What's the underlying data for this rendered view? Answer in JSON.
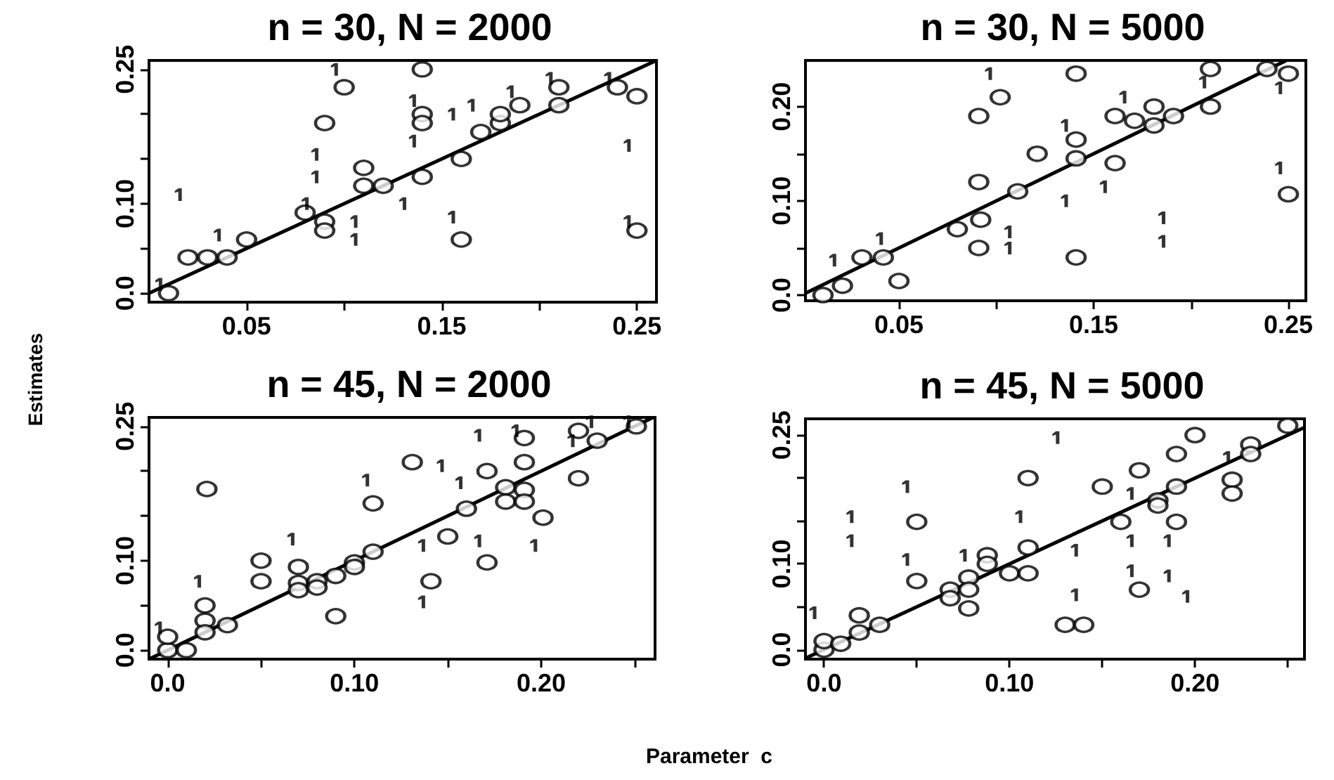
{
  "chart_data": [
    {
      "type": "scatter",
      "title": "n = 30, N = 2000",
      "ylabel": "Estimates",
      "xlim": [
        0,
        0.26
      ],
      "ylim": [
        -0.01,
        0.26
      ],
      "xticks": [
        0.05,
        {
          "value": 0.1,
          "label": null
        },
        0.15,
        {
          "value": 0.2,
          "label": null
        },
        0.25
      ],
      "yticks": [
        {
          "value": 0,
          "label": "0.0"
        },
        {
          "value": 0.05,
          "label": null
        },
        {
          "value": 0.1,
          "label": "0.10"
        },
        {
          "value": 0.15,
          "label": null
        },
        {
          "value": 0.2,
          "label": null
        },
        {
          "value": 0.25,
          "label": "0.25"
        }
      ],
      "series": [
        {
          "type": "scatter",
          "marker": "circle",
          "color": "#000000",
          "x": [
            0.01,
            0.02,
            0.03,
            0.04,
            0.05,
            0.08,
            0.09,
            0.09,
            0.09,
            0.1,
            0.11,
            0.11,
            0.12,
            0.14,
            0.14,
            0.14,
            0.14,
            0.16,
            0.16,
            0.17,
            0.18,
            0.18,
            0.19,
            0.21,
            0.21,
            0.24,
            0.25,
            0.25
          ],
          "values": [
            0.0,
            0.04,
            0.04,
            0.04,
            0.06,
            0.09,
            0.08,
            0.07,
            0.19,
            0.23,
            0.14,
            0.12,
            0.12,
            0.25,
            0.2,
            0.19,
            0.13,
            0.15,
            0.06,
            0.18,
            0.19,
            0.2,
            0.21,
            0.23,
            0.21,
            0.23,
            0.22,
            0.07
          ]
        },
        {
          "type": "scatter",
          "color": "#000000",
          "x": [
            0.015,
            0.005,
            0.035,
            0.085,
            0.085,
            0.08,
            0.095,
            0.105,
            0.105,
            0.13,
            0.135,
            0.135,
            0.155,
            0.155,
            0.165,
            0.185,
            0.205,
            0.235,
            0.245,
            0.245
          ],
          "values": [
            0.11,
            0.01,
            0.065,
            0.155,
            0.13,
            0.1,
            0.25,
            0.08,
            0.06,
            0.1,
            0.215,
            0.17,
            0.2,
            0.085,
            0.21,
            0.225,
            0.24,
            0.24,
            0.165,
            0.08
          ]
        },
        {
          "type": "line",
          "marker": "none",
          "line_style": "solid",
          "color": "#000000",
          "x": [
            0,
            0.26
          ],
          "values": [
            0,
            0.26
          ]
        }
      ]
    },
    {
      "type": "scatter",
      "title": "n = 30, N = 5000",
      "xlim": [
        0.002,
        0.259
      ],
      "ylim": [
        -0.006,
        0.249
      ],
      "xticks": [
        0.05,
        {
          "value": 0.1,
          "label": null
        },
        0.15,
        {
          "value": 0.2,
          "label": null
        },
        0.25
      ],
      "yticks": [
        {
          "value": 0,
          "label": "0.0"
        },
        {
          "value": 0.05,
          "label": null
        },
        {
          "value": 0.1,
          "label": "0.10"
        },
        {
          "value": 0.15,
          "label": null
        },
        {
          "value": 0.2,
          "label": "0.20"
        }
      ],
      "series": [
        {
          "type": "scatter",
          "marker": "circle",
          "color": "#000000",
          "x": [
            0.011,
            0.021,
            0.031,
            0.042,
            0.05,
            0.08,
            0.091,
            0.091,
            0.092,
            0.091,
            0.102,
            0.111,
            0.121,
            0.141,
            0.141,
            0.141,
            0.141,
            0.161,
            0.161,
            0.171,
            0.181,
            0.181,
            0.191,
            0.21,
            0.21,
            0.239,
            0.25,
            0.25
          ],
          "values": [
            0.0,
            0.01,
            0.04,
            0.04,
            0.015,
            0.07,
            0.19,
            0.12,
            0.08,
            0.05,
            0.21,
            0.11,
            0.15,
            0.235,
            0.165,
            0.145,
            0.04,
            0.19,
            0.14,
            0.185,
            0.2,
            0.18,
            0.19,
            0.24,
            0.2,
            0.24,
            0.235,
            0.107
          ]
        },
        {
          "type": "scatter",
          "color": "#000000",
          "x": [
            0.016,
            0.04,
            0.096,
            0.106,
            0.106,
            0.135,
            0.135,
            0.155,
            0.165,
            0.185,
            0.185,
            0.206,
            0.245,
            0.245
          ],
          "values": [
            0.037,
            0.06,
            0.235,
            0.067,
            0.05,
            0.1,
            0.18,
            0.115,
            0.21,
            0.082,
            0.057,
            0.226,
            0.22,
            0.135
          ]
        },
        {
          "type": "line",
          "marker": "none",
          "line_style": "solid",
          "color": "#000000",
          "x": [
            0.002,
            0.249
          ],
          "values": [
            0.002,
            0.249
          ]
        }
      ]
    },
    {
      "type": "scatter",
      "title": "n = 45, N = 2000",
      "xlabel": "Parameter  c",
      "xlim": [
        -0.01,
        0.261
      ],
      "ylim": [
        -0.01,
        0.26
      ],
      "xticks": [
        {
          "value": 0,
          "label": "0.0"
        },
        {
          "value": 0.05,
          "label": null
        },
        {
          "value": 0.1,
          "label": "0.10"
        },
        {
          "value": 0.15,
          "label": null
        },
        {
          "value": 0.2,
          "label": "0.20"
        },
        {
          "value": 0.25,
          "label": null
        }
      ],
      "yticks": [
        {
          "value": 0,
          "label": "0.0"
        },
        {
          "value": 0.05,
          "label": null
        },
        {
          "value": 0.1,
          "label": "0.10"
        },
        {
          "value": 0.15,
          "label": null
        },
        {
          "value": 0.2,
          "label": null
        },
        {
          "value": 0.25,
          "label": "0.25"
        }
      ],
      "series": [
        {
          "type": "scatter",
          "marker": "circle",
          "color": "#000000",
          "x": [
            0,
            0,
            0.01,
            0.02,
            0.02,
            0.02,
            0.032,
            0.021,
            0.05,
            0.05,
            0.07,
            0.07,
            0.07,
            0.08,
            0.08,
            0.09,
            0.09,
            0.1,
            0.1,
            0.11,
            0.11,
            0.131,
            0.141,
            0.15,
            0.16,
            0.171,
            0.171,
            0.181,
            0.181,
            0.191,
            0.191,
            0.191,
            0.191,
            0.201,
            0.22,
            0.22,
            0.23,
            0.251
          ],
          "values": [
            0,
            0.015,
            0,
            0.05,
            0.033,
            0.02,
            0.028,
            0.18,
            0.1,
            0.077,
            0.093,
            0.075,
            0.067,
            0.077,
            0.07,
            0.083,
            0.038,
            0.098,
            0.093,
            0.164,
            0.11,
            0.21,
            0.077,
            0.127,
            0.158,
            0.2,
            0.098,
            0.182,
            0.166,
            0.237,
            0.21,
            0.179,
            0.166,
            0.148,
            0.245,
            0.192,
            0.234,
            0.25
          ]
        },
        {
          "type": "scatter",
          "color": "#000000",
          "x": [
            -0.005,
            0.016,
            0.066,
            0.106,
            0.136,
            0.136,
            0.146,
            0.156,
            0.166,
            0.166,
            0.186,
            0.196,
            0.216,
            0.226,
            0.246
          ],
          "values": [
            0.025,
            0.077,
            0.124,
            0.19,
            0.117,
            0.054,
            0.206,
            0.187,
            0.24,
            0.122,
            0.245,
            0.117,
            0.234,
            0.255,
            0.255
          ]
        },
        {
          "type": "line",
          "marker": "none",
          "line_style": "solid",
          "color": "#000000",
          "x": [
            -0.01,
            0.26
          ],
          "values": [
            -0.01,
            0.26
          ]
        }
      ]
    },
    {
      "type": "scatter",
      "title": "n = 45, N = 5000",
      "xlim": [
        -0.01,
        0.259
      ],
      "ylim": [
        -0.011,
        0.269
      ],
      "xticks": [
        {
          "value": 0,
          "label": "0.0"
        },
        {
          "value": 0.05,
          "label": null
        },
        {
          "value": 0.1,
          "label": "0.10"
        },
        {
          "value": 0.15,
          "label": null
        },
        {
          "value": 0.2,
          "label": "0.20"
        },
        {
          "value": 0.25,
          "label": null
        }
      ],
      "yticks": [
        {
          "value": 0,
          "label": "0.0"
        },
        {
          "value": 0.05,
          "label": null
        },
        {
          "value": 0.1,
          "label": "0.10"
        },
        {
          "value": 0.15,
          "label": null
        },
        {
          "value": 0.2,
          "label": null
        },
        {
          "value": 0.25,
          "label": "0.25"
        }
      ],
      "series": [
        {
          "type": "scatter",
          "marker": "circle",
          "color": "#000000",
          "x": [
            0,
            0,
            0.009,
            0.019,
            0.019,
            0.03,
            0.05,
            0.05,
            0.068,
            0.068,
            0.078,
            0.078,
            0.078,
            0.088,
            0.088,
            0.1,
            0.11,
            0.11,
            0.11,
            0.13,
            0.14,
            0.15,
            0.16,
            0.17,
            0.17,
            0.18,
            0.18,
            0.19,
            0.19,
            0.19,
            0.2,
            0.22,
            0.22,
            0.23,
            0.23,
            0.25
          ],
          "values": [
            0,
            0.01,
            0.007,
            0.04,
            0.02,
            0.029,
            0.149,
            0.08,
            0.07,
            0.06,
            0.084,
            0.07,
            0.048,
            0.11,
            0.1,
            0.089,
            0.2,
            0.119,
            0.089,
            0.029,
            0.029,
            0.19,
            0.149,
            0.209,
            0.07,
            0.174,
            0.168,
            0.228,
            0.19,
            0.149,
            0.25,
            0.198,
            0.182,
            0.239,
            0.228,
            0.261
          ]
        },
        {
          "type": "scatter",
          "color": "#000000",
          "x": [
            -0.006,
            0.014,
            0.014,
            0.044,
            0.044,
            0.075,
            0.105,
            0.125,
            0.135,
            0.135,
            0.165,
            0.165,
            0.165,
            0.185,
            0.185,
            0.195,
            0.217
          ],
          "values": [
            0.043,
            0.155,
            0.127,
            0.19,
            0.105,
            0.11,
            0.155,
            0.247,
            0.116,
            0.064,
            0.127,
            0.092,
            0.182,
            0.127,
            0.086,
            0.062,
            0.224
          ]
        },
        {
          "type": "line",
          "marker": "none",
          "line_style": "solid",
          "color": "#000000",
          "x": [
            -0.01,
            0.259
          ],
          "values": [
            -0.01,
            0.259
          ]
        }
      ]
    }
  ]
}
